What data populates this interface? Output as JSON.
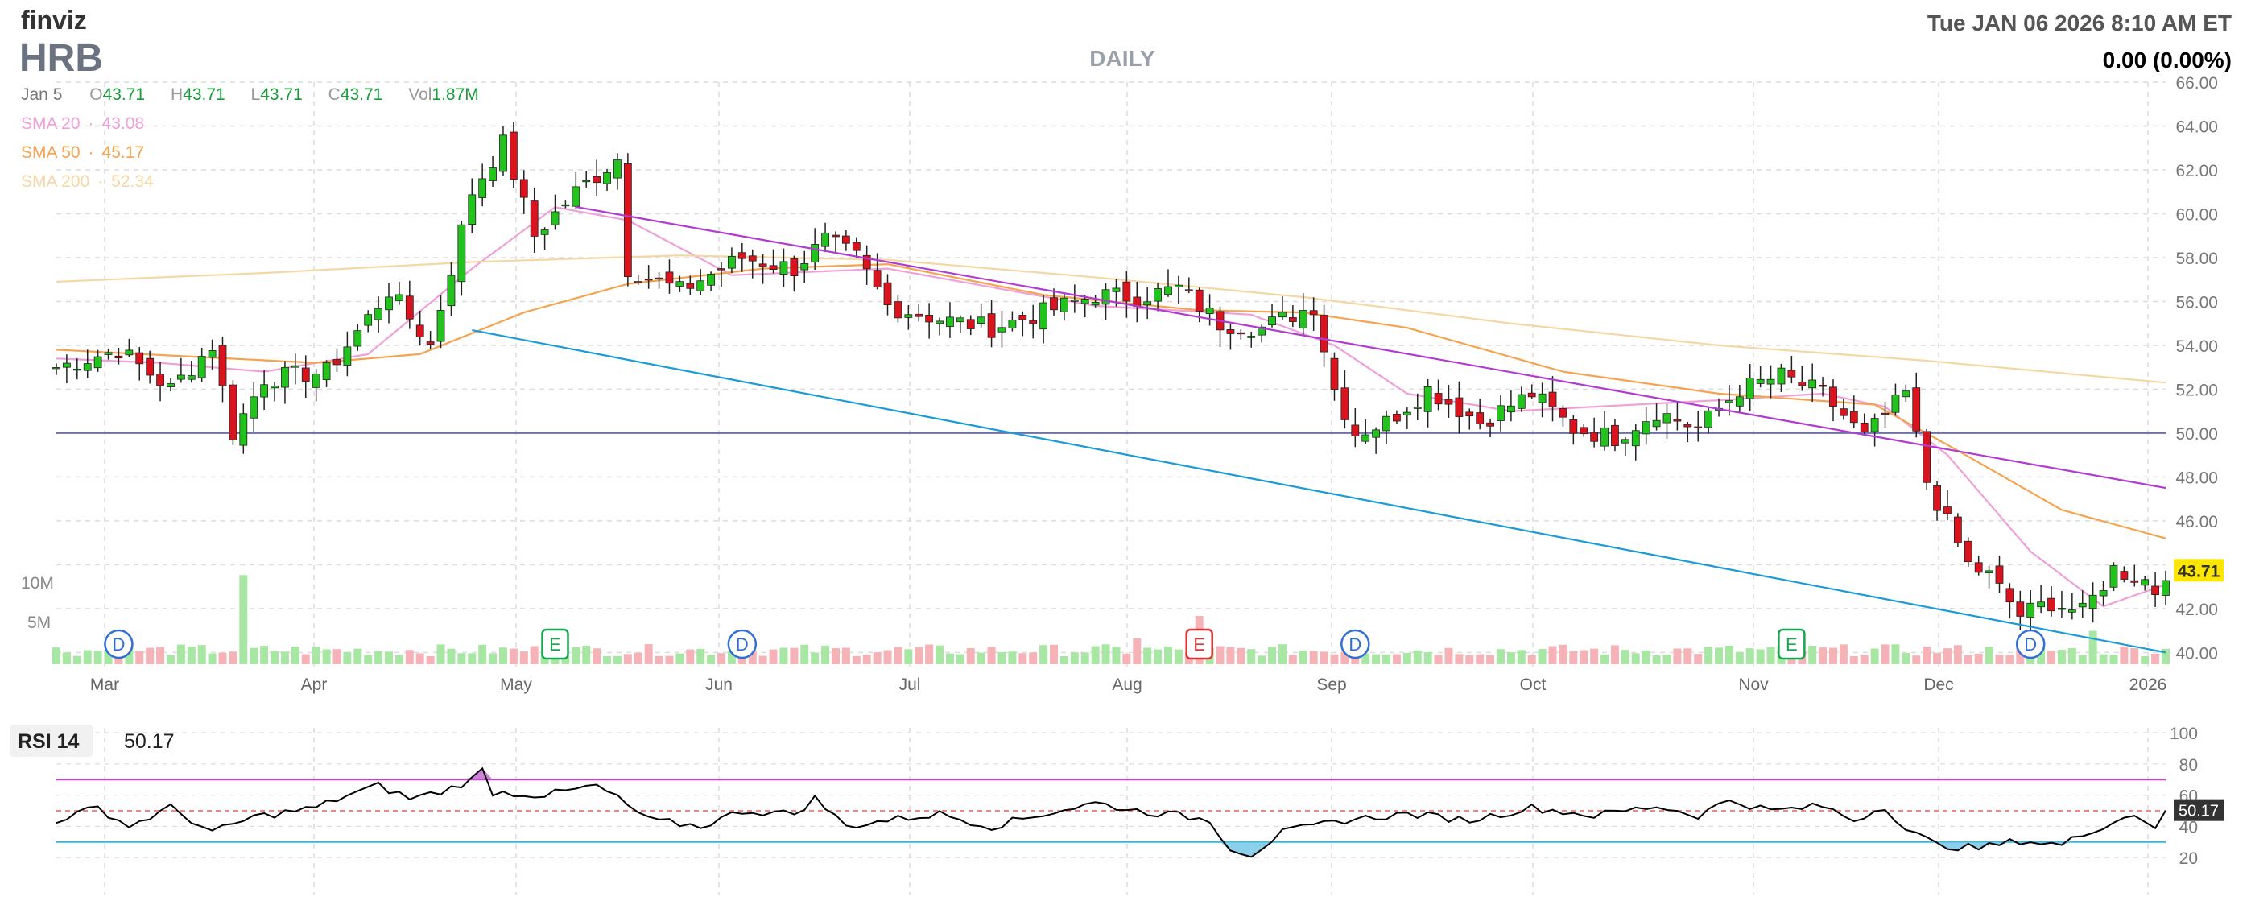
{
  "header": {
    "logo": "finviz",
    "ticker": "HRB",
    "timeframe": "DAILY",
    "datetime": "Tue JAN 06 2026 8:10 AM ET",
    "change": "0.00 (0.00%)"
  },
  "ohlc_bar": {
    "date": "Jan 5",
    "o_label": "O",
    "o_value": "43.71",
    "h_label": "H",
    "h_value": "43.71",
    "l_label": "L",
    "l_value": "43.71",
    "c_label": "C",
    "c_value": "43.71",
    "vol_label": "Vol",
    "vol_value": "1.87M"
  },
  "sma_legend": [
    {
      "label": "SMA 20",
      "value": "43.08",
      "color": "#f0a0d8"
    },
    {
      "label": "SMA 50",
      "value": "45.17",
      "color": "#f5a34f"
    },
    {
      "label": "SMA 200",
      "value": "52.34",
      "color": "#f5d7a6"
    }
  ],
  "colors": {
    "up": "#22c31d",
    "down": "#d9141e",
    "wick": "#222222",
    "vol_up": "#a8e6a3",
    "vol_down": "#f5b3b8",
    "upper_trend": "#b13bd1",
    "lower_trend": "#1a9bd7",
    "level_line": "#6b6fb8",
    "rsi_line": "#000000",
    "rsi_upper": "#cd3fd2",
    "rsi_lower": "#2bb8e0",
    "rsi_mid": "#e06060",
    "last_badge": "#ffe600",
    "grid": "#dcdcdc",
    "dividend_marker": "#2f6fd6",
    "earnings_green": "#18a550",
    "earnings_red": "#dd3333"
  },
  "chart_data": [
    {
      "type": "candlestick",
      "title": "DAILY",
      "ticker": "HRB",
      "ylim": [
        39.5,
        66.0
      ],
      "y_ticks": [
        "40.00",
        "42.00",
        "44.00",
        "46.00",
        "48.00",
        "50.00",
        "52.00",
        "54.00",
        "56.00",
        "58.00",
        "60.00",
        "62.00",
        "64.00",
        "66.00"
      ],
      "x_ticks": [
        "Mar",
        "Apr",
        "May",
        "Jun",
        "Jul",
        "Aug",
        "Sep",
        "Oct",
        "Nov",
        "Dec",
        "2026"
      ],
      "last_price_label": "43.71",
      "level_line": 50.0,
      "trendlines": [
        {
          "name": "upper",
          "points": [
            [
              0,
              64.5
            ],
            [
              203,
              47.5
            ]
          ]
        },
        {
          "name": "lower",
          "points": [
            [
              0,
              58.3
            ],
            [
              203,
              40.0
            ]
          ]
        }
      ],
      "anchors": [
        [
          0,
          53.0
        ],
        [
          6,
          53.8
        ],
        [
          11,
          52.0
        ],
        [
          15,
          54.0
        ],
        [
          17,
          50.0
        ],
        [
          20,
          52.5
        ],
        [
          26,
          52.8
        ],
        [
          28,
          54.0
        ],
        [
          32,
          56.5
        ],
        [
          36,
          54.0
        ],
        [
          40,
          61.0
        ],
        [
          43,
          63.2
        ],
        [
          46,
          59.0
        ],
        [
          50,
          61.0
        ],
        [
          54,
          62.5
        ],
        [
          55,
          57.5
        ],
        [
          60,
          56.5
        ],
        [
          66,
          58.0
        ],
        [
          71,
          57.5
        ],
        [
          74,
          58.8
        ],
        [
          77,
          58.0
        ],
        [
          80,
          55.8
        ],
        [
          85,
          55.2
        ],
        [
          90,
          54.8
        ],
        [
          95,
          55.5
        ],
        [
          100,
          56.3
        ],
        [
          104,
          56.2
        ],
        [
          108,
          56.6
        ],
        [
          112,
          55.0
        ],
        [
          116,
          54.8
        ],
        [
          121,
          55.8
        ],
        [
          123,
          52.0
        ],
        [
          125,
          50.0
        ],
        [
          128,
          50.5
        ],
        [
          132,
          52.0
        ],
        [
          137,
          50.5
        ],
        [
          142,
          51.8
        ],
        [
          146,
          50.2
        ],
        [
          150,
          49.8
        ],
        [
          154,
          51.0
        ],
        [
          158,
          50.2
        ],
        [
          162,
          52.0
        ],
        [
          166,
          52.6
        ],
        [
          170,
          51.8
        ],
        [
          174,
          49.8
        ],
        [
          178,
          51.8
        ],
        [
          180,
          47.8
        ],
        [
          184,
          44.0
        ],
        [
          186,
          43.5
        ],
        [
          189,
          41.7
        ],
        [
          192,
          42.3
        ],
        [
          195,
          41.8
        ],
        [
          198,
          43.8
        ],
        [
          201,
          43.3
        ],
        [
          202,
          42.8
        ],
        [
          203,
          43.71
        ]
      ],
      "sma": [
        {
          "name": "SMA 20",
          "points": [
            [
              0,
              53.4
            ],
            [
              10,
              53.2
            ],
            [
              20,
              52.8
            ],
            [
              30,
              53.6
            ],
            [
              40,
              57.5
            ],
            [
              48,
              60.3
            ],
            [
              55,
              59.7
            ],
            [
              65,
              57.2
            ],
            [
              80,
              57.5
            ],
            [
              100,
              55.8
            ],
            [
              115,
              55.4
            ],
            [
              123,
              54.0
            ],
            [
              130,
              51.8
            ],
            [
              140,
              51.0
            ],
            [
              160,
              51.5
            ],
            [
              170,
              51.8
            ],
            [
              176,
              51.2
            ],
            [
              182,
              49.0
            ],
            [
              190,
              44.6
            ],
            [
              197,
              42.1
            ],
            [
              203,
              43.1
            ]
          ]
        },
        {
          "name": "SMA 50",
          "points": [
            [
              0,
              53.8
            ],
            [
              25,
              53.2
            ],
            [
              35,
              53.6
            ],
            [
              45,
              55.5
            ],
            [
              55,
              56.8
            ],
            [
              68,
              57.5
            ],
            [
              80,
              57.7
            ],
            [
              95,
              56.3
            ],
            [
              110,
              55.6
            ],
            [
              120,
              55.5
            ],
            [
              130,
              54.8
            ],
            [
              145,
              52.8
            ],
            [
              160,
              51.8
            ],
            [
              175,
              51.3
            ],
            [
              183,
              49.2
            ],
            [
              193,
              46.5
            ],
            [
              203,
              45.2
            ]
          ]
        },
        {
          "name": "SMA 200",
          "points": [
            [
              0,
              56.9
            ],
            [
              20,
              57.3
            ],
            [
              40,
              57.8
            ],
            [
              60,
              58.1
            ],
            [
              80,
              57.9
            ],
            [
              100,
              57.1
            ],
            [
              120,
              56.2
            ],
            [
              140,
              55.0
            ],
            [
              160,
              54.0
            ],
            [
              180,
              53.3
            ],
            [
              203,
              52.3
            ]
          ]
        }
      ],
      "events": [
        {
          "kind": "dividend",
          "label": "D",
          "x": 6
        },
        {
          "kind": "earnings",
          "label": "E",
          "x": 48
        },
        {
          "kind": "dividend",
          "label": "D",
          "x": 66
        },
        {
          "kind": "earnings",
          "label": "E",
          "x": 110
        },
        {
          "kind": "dividend",
          "label": "D",
          "x": 125
        },
        {
          "kind": "earnings",
          "label": "E",
          "x": 167
        },
        {
          "kind": "dividend",
          "label": "D",
          "x": 190
        }
      ]
    },
    {
      "type": "bar",
      "title": "Volume",
      "y_ticks": [
        "10M",
        "5M"
      ],
      "ylim": [
        0,
        13
      ],
      "base_volume_m": 1.8,
      "spikes": [
        [
          18,
          12.0
        ],
        [
          110,
          6.5
        ],
        [
          104,
          3.5
        ],
        [
          167,
          3.2
        ],
        [
          196,
          4.5
        ]
      ]
    },
    {
      "type": "line",
      "title": "RSI 14",
      "label": "RSI 14",
      "value": "50.17",
      "ylim": [
        0,
        100
      ],
      "y_ticks": [
        "100",
        "80",
        "60",
        "40",
        "20"
      ],
      "upper": 70,
      "lower": 30,
      "mid": 50,
      "anchors": [
        [
          0,
          44
        ],
        [
          4,
          52
        ],
        [
          7,
          40
        ],
        [
          11,
          52
        ],
        [
          15,
          36
        ],
        [
          19,
          46
        ],
        [
          25,
          52
        ],
        [
          28,
          60
        ],
        [
          31,
          66
        ],
        [
          34,
          58
        ],
        [
          37,
          62
        ],
        [
          40,
          70
        ],
        [
          41,
          76
        ],
        [
          42,
          62
        ],
        [
          47,
          60
        ],
        [
          52,
          66
        ],
        [
          54,
          58
        ],
        [
          57,
          44
        ],
        [
          62,
          40
        ],
        [
          66,
          50
        ],
        [
          71,
          48
        ],
        [
          73,
          58
        ],
        [
          76,
          40
        ],
        [
          80,
          44
        ],
        [
          85,
          48
        ],
        [
          90,
          40
        ],
        [
          95,
          48
        ],
        [
          100,
          55
        ],
        [
          104,
          50
        ],
        [
          108,
          47
        ],
        [
          111,
          44
        ],
        [
          113,
          26
        ],
        [
          115,
          22
        ],
        [
          118,
          36
        ],
        [
          124,
          44
        ],
        [
          130,
          48
        ],
        [
          136,
          44
        ],
        [
          142,
          52
        ],
        [
          148,
          47
        ],
        [
          154,
          53
        ],
        [
          158,
          47
        ],
        [
          161,
          57
        ],
        [
          165,
          50
        ],
        [
          170,
          53
        ],
        [
          173,
          44
        ],
        [
          176,
          53
        ],
        [
          178,
          38
        ],
        [
          181,
          28
        ],
        [
          185,
          26
        ],
        [
          189,
          31
        ],
        [
          193,
          28
        ],
        [
          196,
          38
        ],
        [
          200,
          48
        ],
        [
          202,
          40
        ],
        [
          203,
          50.17
        ]
      ]
    }
  ]
}
